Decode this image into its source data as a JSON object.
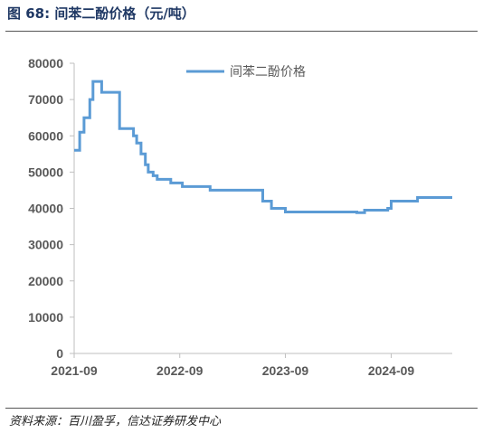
{
  "figure": {
    "title": "图 68:  间苯二酚价格（元/吨）",
    "source": "资料来源：百川盈孚，信达证券研发中心"
  },
  "colors": {
    "series": "#5b9bd5",
    "axis": "#bfbfbf",
    "text": "#595959",
    "title": "#1f3864"
  },
  "chart_data": {
    "type": "line",
    "title": "间苯二酚价格（元/吨）",
    "xlabel": "",
    "ylabel": "",
    "ylim": [
      0,
      80000
    ],
    "yticks": [
      0,
      10000,
      20000,
      30000,
      40000,
      50000,
      60000,
      70000,
      80000
    ],
    "ytick_labels": [
      "0",
      "10000",
      "20000",
      "30000",
      "40000",
      "50000",
      "60000",
      "70000",
      "80000"
    ],
    "xlim": [
      "2021-09-01",
      "2025-03-31"
    ],
    "xticks": [
      "2021-09-01",
      "2022-09-01",
      "2023-09-01",
      "2024-09-01"
    ],
    "xtick_labels": [
      "2021-09",
      "2022-09",
      "2023-09",
      "2024-09"
    ],
    "grid": false,
    "legend": "top-center",
    "series": [
      {
        "name": "间苯二酚价格",
        "step": true,
        "points": [
          [
            "2021-09-01",
            56000
          ],
          [
            "2021-09-20",
            61000
          ],
          [
            "2021-10-05",
            65000
          ],
          [
            "2021-10-25",
            70000
          ],
          [
            "2021-11-05",
            75000
          ],
          [
            "2021-12-05",
            72000
          ],
          [
            "2022-02-05",
            62000
          ],
          [
            "2022-03-25",
            60000
          ],
          [
            "2022-04-05",
            58000
          ],
          [
            "2022-04-20",
            55000
          ],
          [
            "2022-05-05",
            52000
          ],
          [
            "2022-05-15",
            50000
          ],
          [
            "2022-06-01",
            49000
          ],
          [
            "2022-06-15",
            48000
          ],
          [
            "2022-08-01",
            47000
          ],
          [
            "2022-09-10",
            46000
          ],
          [
            "2022-12-15",
            45000
          ],
          [
            "2023-06-15",
            42000
          ],
          [
            "2023-07-15",
            40000
          ],
          [
            "2023-09-01",
            39000
          ],
          [
            "2024-04-15",
            39000
          ],
          [
            "2024-05-05",
            38800
          ],
          [
            "2024-06-01",
            39500
          ],
          [
            "2024-08-20",
            40000
          ],
          [
            "2024-09-01",
            42000
          ],
          [
            "2024-12-01",
            43000
          ],
          [
            "2025-03-31",
            43000
          ]
        ]
      }
    ]
  }
}
